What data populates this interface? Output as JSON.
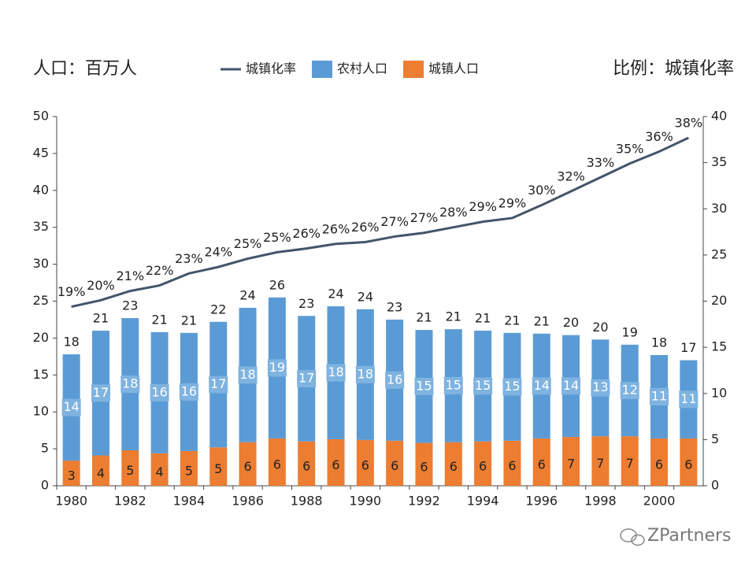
{
  "chart_data": {
    "type": "bar",
    "left_axis_title": "人口：百万人",
    "right_axis_title": "比例：城镇化率",
    "watermark": "ZPartners",
    "categories": [
      "1980",
      null,
      "1982",
      null,
      "1984",
      null,
      "1986",
      null,
      "1988",
      null,
      "1990",
      null,
      "1992",
      null,
      "1994",
      null,
      "1996",
      null,
      "1998",
      null,
      "2000",
      null
    ],
    "ylim": [
      0,
      50
    ],
    "yticks": [
      0,
      5,
      10,
      15,
      20,
      25,
      30,
      35,
      40,
      45,
      50
    ],
    "y2lim": [
      0,
      40
    ],
    "y2ticks": [
      0,
      5,
      10,
      15,
      20,
      25,
      30,
      35,
      40
    ],
    "series": [
      {
        "name": "城镇化率",
        "type": "line",
        "axis": "y2",
        "color": "#44546a",
        "values": [
          19.4,
          20.1,
          21.1,
          21.7,
          23.0,
          23.7,
          24.6,
          25.3,
          25.7,
          26.2,
          26.4,
          27.0,
          27.4,
          28.0,
          28.6,
          29.0,
          30.4,
          31.9,
          33.4,
          34.9,
          36.2,
          37.7
        ],
        "value_labels": [
          "19%",
          "20%",
          "21%",
          "22%",
          "23%",
          "24%",
          "25%",
          "25%",
          "26%",
          "26%",
          "26%",
          "27%",
          "27%",
          "28%",
          "29%",
          "29%",
          "30%",
          "32%",
          "33%",
          "35%",
          "36%",
          "38%"
        ]
      },
      {
        "name": "农村人口",
        "type": "bar",
        "color": "#5b9bd5",
        "values": [
          14.4,
          16.9,
          17.9,
          16.4,
          16.0,
          17.0,
          18.2,
          19.1,
          17.0,
          18.0,
          17.7,
          16.4,
          15.3,
          15.3,
          15.0,
          14.6,
          14.2,
          13.8,
          13.1,
          12.4,
          11.3,
          10.6
        ],
        "value_labels": [
          "14",
          "17",
          "18",
          "16",
          "16",
          "17",
          "18",
          "19",
          "17",
          "18",
          "18",
          "16",
          "15",
          "15",
          "15",
          "15",
          "14",
          "14",
          "13",
          "12",
          "11",
          "11"
        ]
      },
      {
        "name": "城镇人口",
        "type": "bar",
        "color": "#ed7d31",
        "values": [
          3.4,
          4.1,
          4.8,
          4.4,
          4.7,
          5.2,
          5.9,
          6.4,
          6.0,
          6.3,
          6.2,
          6.1,
          5.8,
          5.9,
          6.0,
          6.1,
          6.4,
          6.6,
          6.7,
          6.7,
          6.4,
          6.4
        ],
        "value_labels": [
          "3",
          "4",
          "5",
          "4",
          "5",
          "5",
          "6",
          "6",
          "6",
          "6",
          "6",
          "6",
          "6",
          "6",
          "6",
          "6",
          "6",
          "7",
          "7",
          "7",
          "6",
          "6"
        ]
      }
    ],
    "total_labels": [
      18,
      21,
      23,
      21,
      21,
      22,
      24,
      26,
      23,
      24,
      24,
      23,
      21,
      21,
      21,
      21,
      21,
      20,
      20,
      19,
      18,
      17
    ]
  }
}
